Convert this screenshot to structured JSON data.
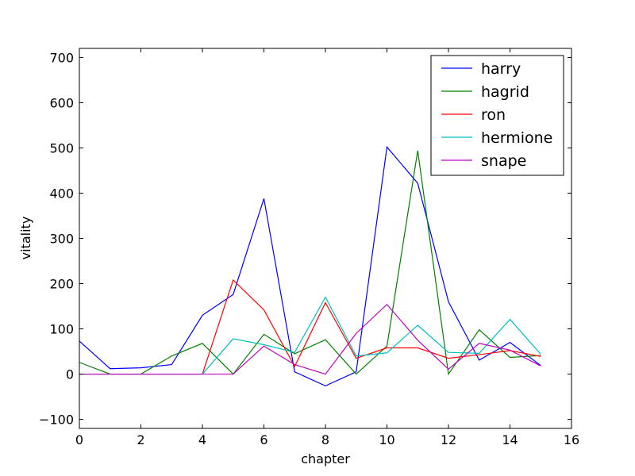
{
  "chart_data": {
    "type": "line",
    "title": "",
    "xlabel": "chapter",
    "ylabel": "vitality",
    "xlim": [
      0,
      16
    ],
    "ylim": [
      -120,
      720
    ],
    "xticks": [
      0,
      2,
      4,
      6,
      8,
      10,
      12,
      14,
      16
    ],
    "yticks": [
      -100,
      0,
      100,
      200,
      300,
      400,
      500,
      600,
      700
    ],
    "grid": false,
    "legend_position": "top-right",
    "x": [
      0,
      1,
      2,
      3,
      4,
      5,
      6,
      7,
      8,
      9,
      10,
      11,
      12,
      13,
      14,
      15
    ],
    "series": [
      {
        "name": "harry",
        "color": "#0000ff",
        "values": [
          73,
          12,
          14,
          21,
          130,
          176,
          388,
          5,
          -26,
          5,
          502,
          422,
          160,
          31,
          70,
          19
        ]
      },
      {
        "name": "hagrid",
        "color": "#008000",
        "values": [
          26,
          0,
          0,
          40,
          68,
          0,
          88,
          45,
          76,
          0,
          62,
          494,
          0,
          98,
          37,
          41
        ]
      },
      {
        "name": "ron",
        "color": "#ff0000",
        "values": [
          0,
          0,
          0,
          0,
          0,
          208,
          142,
          17,
          158,
          35,
          58,
          58,
          35,
          43,
          52,
          39
        ]
      },
      {
        "name": "hermione",
        "color": "#00bfbf",
        "values": [
          0,
          0,
          0,
          0,
          0,
          78,
          65,
          48,
          170,
          40,
          47,
          108,
          48,
          46,
          121,
          44
        ]
      },
      {
        "name": "snape",
        "color": "#bf00bf",
        "values": [
          0,
          0,
          0,
          0,
          0,
          0,
          62,
          21,
          0,
          90,
          154,
          75,
          11,
          68,
          53,
          18
        ]
      }
    ]
  }
}
